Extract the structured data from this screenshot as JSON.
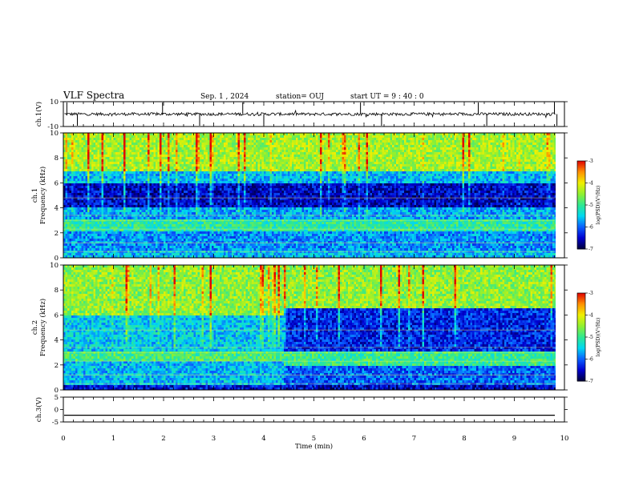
{
  "header": {
    "title": "VLF Spectra",
    "date": "Sep. 1 , 2024",
    "station": "station= OUJ",
    "start": "start  UT =   9 : 40 : 0"
  },
  "chart_data": [
    {
      "type": "line",
      "id": "ch1-waveform",
      "ylabel": "ch.1(V)",
      "ylim": [
        -10,
        10
      ],
      "yticks": [
        "10",
        "-10"
      ],
      "xlim": [
        0,
        10
      ],
      "description_series": "waveform",
      "baseline": 0,
      "noise_amplitude": 1.2,
      "spike_times_min": [
        0.07,
        0.28,
        1.98,
        2.72,
        3.58,
        4.0,
        5.93,
        6.35,
        8.28,
        8.45,
        9.8,
        9.85
      ]
    },
    {
      "type": "heatmap",
      "id": "ch1-spectrogram",
      "ylabel": "ch.1\nFrequency  (kHz)",
      "ylim": [
        0,
        10
      ],
      "yticks": [
        "0",
        "2",
        "4",
        "6",
        "8",
        "10"
      ],
      "xlim": [
        0,
        10
      ],
      "colorbar": {
        "range": [
          -7,
          -3
        ],
        "ticks": [
          "-3",
          "-4",
          "-5",
          "-6",
          "-7"
        ],
        "label": "log(PSD)(V²/Hz)"
      },
      "bands_khz_log_psd": [
        {
          "f": [
            0.0,
            0.6
          ],
          "v": -5.6
        },
        {
          "f": [
            0.6,
            2.2
          ],
          "v": -5.8
        },
        {
          "f": [
            2.2,
            3.0
          ],
          "v": -5.1
        },
        {
          "f": [
            3.0,
            4.0
          ],
          "v": -5.7
        },
        {
          "f": [
            4.0,
            6.0
          ],
          "v": -6.5
        },
        {
          "f": [
            6.0,
            7.0
          ],
          "v": -5.6
        },
        {
          "f": [
            7.0,
            10.0
          ],
          "v": -4.4
        }
      ]
    },
    {
      "type": "heatmap",
      "id": "ch2-spectrogram",
      "ylabel": "ch.2\nFrequency  (kHz)",
      "ylim": [
        0,
        10
      ],
      "yticks": [
        "0",
        "2",
        "4",
        "6",
        "8",
        "10"
      ],
      "xlim": [
        0,
        10
      ],
      "colorbar": {
        "range": [
          -7,
          -3
        ],
        "ticks": [
          "-3",
          "-4",
          "-5",
          "-6",
          "-7"
        ],
        "label": "log(PSD)(V²/Hz)"
      },
      "regime_change_min": 4.4,
      "bands_before_khz_log_psd": [
        {
          "f": [
            0.0,
            0.4
          ],
          "v": -6.4
        },
        {
          "f": [
            0.4,
            2.4
          ],
          "v": -5.6
        },
        {
          "f": [
            2.4,
            3.0
          ],
          "v": -4.9
        },
        {
          "f": [
            3.0,
            6.0
          ],
          "v": -5.5
        },
        {
          "f": [
            6.0,
            10.0
          ],
          "v": -4.5
        }
      ],
      "bands_after_khz_log_psd": [
        {
          "f": [
            0.0,
            0.4
          ],
          "v": -6.5
        },
        {
          "f": [
            0.4,
            2.0
          ],
          "v": -6.0
        },
        {
          "f": [
            2.0,
            3.0
          ],
          "v": -5.0
        },
        {
          "f": [
            3.0,
            6.6
          ],
          "v": -6.3
        },
        {
          "f": [
            6.6,
            10.0
          ],
          "v": -4.5
        }
      ]
    },
    {
      "type": "line",
      "id": "ch3-waveform",
      "ylabel": "ch.3(V)",
      "ylim": [
        -5,
        5
      ],
      "yticks": [
        "5",
        "0",
        "-5"
      ],
      "xlim": [
        0,
        10
      ],
      "constant_value": -2.3
    }
  ],
  "x_axis": {
    "label": "Time  (min)",
    "ticks": [
      "0",
      "1",
      "2",
      "3",
      "4",
      "5",
      "6",
      "7",
      "8",
      "9",
      "10"
    ]
  },
  "colormap": [
    "#00003a",
    "#0000d0",
    "#0a60ff",
    "#00d8f0",
    "#30e890",
    "#90f030",
    "#f0f000",
    "#ff9000",
    "#e00000",
    "#ffffff"
  ]
}
